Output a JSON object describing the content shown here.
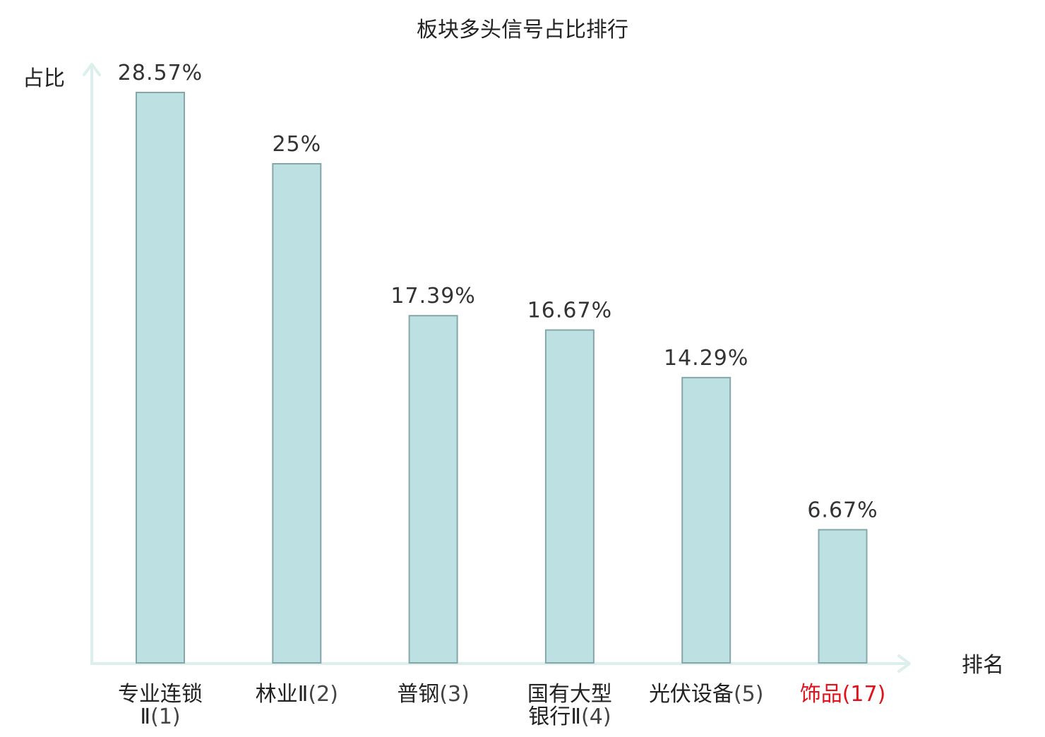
{
  "chart_data": {
    "type": "bar",
    "title": "板块多头信号占比排行",
    "ylabel": "占比",
    "xlabel": "排名",
    "ylim": [
      0,
      30
    ],
    "grid": false,
    "legend": "none",
    "categories": [
      {
        "name_lines": [
          "专业连锁",
          "Ⅱ"
        ],
        "rank": "(1)",
        "highlight": false
      },
      {
        "name_lines": [
          "林业Ⅱ"
        ],
        "rank": "(2)",
        "highlight": false
      },
      {
        "name_lines": [
          "普钢"
        ],
        "rank": "(3)",
        "highlight": false
      },
      {
        "name_lines": [
          "国有大型",
          "银行Ⅱ"
        ],
        "rank": "(4)",
        "highlight": false
      },
      {
        "name_lines": [
          "光伏设备"
        ],
        "rank": "(5)",
        "highlight": false
      },
      {
        "name_lines": [
          "饰品"
        ],
        "rank": "(17)",
        "highlight": true
      }
    ],
    "values": [
      28.57,
      25,
      17.39,
      16.67,
      14.29,
      6.67
    ],
    "value_labels": [
      "28.57%",
      "25%",
      "17.39%",
      "16.67%",
      "14.29%",
      "6.67%"
    ]
  },
  "colors": {
    "bar_fill": "#bde0e3",
    "bar_stroke": "#86a7aa",
    "axis": "#dcefec",
    "text": "#222222",
    "value_text": "#333333",
    "highlight": "#e0121a"
  }
}
